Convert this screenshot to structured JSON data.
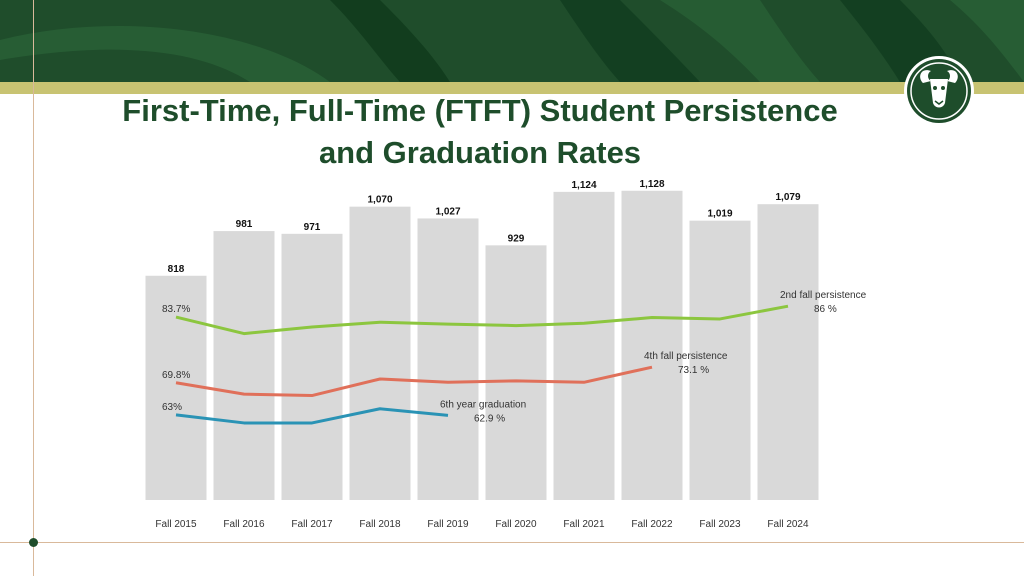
{
  "title": {
    "line1": "First-Time, Full-Time (FTFT) Student Persistence",
    "line2": "and Graduation Rates"
  },
  "colors": {
    "banner": "#1f4d2b",
    "gold": "#c8c372",
    "bars": "#d9d9d9",
    "second_fall": "#8cc63f",
    "fourth_fall": "#e0705a",
    "sixth_year": "#2a93b5",
    "title": "#1e4d2b"
  },
  "chart_data": {
    "type": "bar",
    "categories": [
      "Fall 2015",
      "Fall 2016",
      "Fall 2017",
      "Fall 2018",
      "Fall 2019",
      "Fall 2020",
      "Fall 2021",
      "Fall 2022",
      "Fall 2023",
      "Fall 2024"
    ],
    "values": [
      818,
      981,
      971,
      1070,
      1027,
      929,
      1124,
      1128,
      1019,
      1079
    ],
    "bar_labels": [
      "818",
      "981",
      "971",
      "1,070",
      "1,027",
      "929",
      "1,124",
      "1,128",
      "1,019",
      "1,079"
    ],
    "ylim": [
      0,
      1160
    ],
    "lines": [
      {
        "name": "2nd fall persistence",
        "values": [
          83.7,
          80.2,
          81.6,
          82.6,
          82.2,
          81.9,
          82.4,
          83.6,
          83.3,
          86
        ],
        "start_label": "83.7%",
        "end_label": "86 %",
        "color_key": "second_fall"
      },
      {
        "name": "4th fall persistence",
        "values": [
          69.8,
          67.4,
          67.1,
          70.6,
          69.9,
          70.2,
          69.9,
          73.1
        ],
        "start_label": "69.8%",
        "end_label": "73.1 %",
        "color_key": "fourth_fall"
      },
      {
        "name": "6th year graduation",
        "values": [
          63,
          61.3,
          61.3,
          64.3,
          62.9
        ],
        "start_label": "63%",
        "end_label": "62.9 %",
        "color_key": "sixth_year"
      }
    ],
    "line_ylim": [
      45,
      100
    ]
  }
}
